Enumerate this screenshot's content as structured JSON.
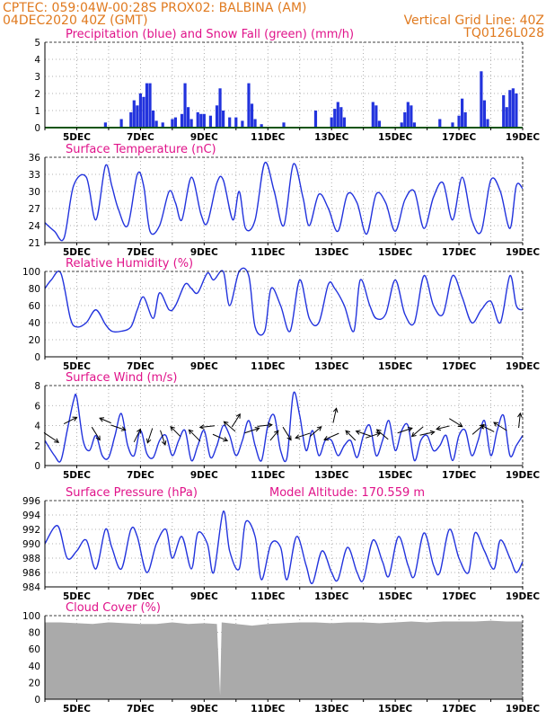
{
  "header": {
    "line1": "CPTEC:   059:04W-00:28S   PROX02: BALBINA (AM)",
    "line2_left": "04DEC2020 40Z (GMT)",
    "line2_right": "Vertical Grid Line: 40Z",
    "line3_right": "TQ0126L028"
  },
  "colors": {
    "header": "#e07a1f",
    "title": "#e0138a",
    "line": "#2233dd",
    "precip": "#2233dd",
    "snow": "#22aa22",
    "cloud": "#aaaaaa"
  },
  "chart_data": [
    {
      "type": "bar",
      "title": "Precipitation (blue) and Snow Fall (green) (mm/h)",
      "ylim": [
        0,
        5
      ],
      "yticks": [
        "0",
        "1",
        "2",
        "3",
        "4",
        "5"
      ],
      "xticks": [
        "5DEC",
        "7DEC",
        "9DEC",
        "11DEC",
        "13DEC",
        "15DEC",
        "17DEC",
        "19DEC"
      ],
      "xrange_days": [
        4,
        19
      ],
      "precip": [
        [
          5.9,
          0.3
        ],
        [
          6.4,
          0.5
        ],
        [
          6.7,
          0.9
        ],
        [
          6.8,
          1.6
        ],
        [
          6.9,
          1.3
        ],
        [
          7.0,
          2.0
        ],
        [
          7.1,
          1.8
        ],
        [
          7.2,
          2.6
        ],
        [
          7.3,
          2.6
        ],
        [
          7.4,
          1.0
        ],
        [
          7.5,
          0.4
        ],
        [
          7.7,
          0.3
        ],
        [
          8.0,
          0.5
        ],
        [
          8.1,
          0.6
        ],
        [
          8.3,
          0.8
        ],
        [
          8.4,
          2.6
        ],
        [
          8.5,
          1.2
        ],
        [
          8.6,
          0.5
        ],
        [
          8.8,
          0.9
        ],
        [
          8.9,
          0.8
        ],
        [
          9.0,
          0.8
        ],
        [
          9.2,
          0.7
        ],
        [
          9.4,
          1.3
        ],
        [
          9.5,
          2.3
        ],
        [
          9.6,
          1.0
        ],
        [
          9.8,
          0.6
        ],
        [
          10.0,
          0.6
        ],
        [
          10.2,
          0.4
        ],
        [
          10.4,
          2.6
        ],
        [
          10.5,
          1.4
        ],
        [
          10.6,
          0.5
        ],
        [
          10.8,
          0.2
        ],
        [
          11.5,
          0.3
        ],
        [
          12.5,
          1.0
        ],
        [
          13.0,
          0.6
        ],
        [
          13.1,
          1.1
        ],
        [
          13.2,
          1.5
        ],
        [
          13.3,
          1.2
        ],
        [
          13.4,
          0.6
        ],
        [
          14.3,
          1.5
        ],
        [
          14.4,
          1.3
        ],
        [
          14.5,
          0.4
        ],
        [
          15.2,
          0.3
        ],
        [
          15.3,
          0.9
        ],
        [
          15.4,
          1.5
        ],
        [
          15.5,
          1.3
        ],
        [
          15.6,
          0.3
        ],
        [
          16.4,
          0.5
        ],
        [
          16.8,
          0.3
        ],
        [
          17.0,
          0.7
        ],
        [
          17.1,
          1.7
        ],
        [
          17.2,
          0.9
        ],
        [
          17.7,
          3.3
        ],
        [
          17.8,
          1.6
        ],
        [
          17.9,
          0.5
        ],
        [
          18.4,
          1.9
        ],
        [
          18.5,
          1.2
        ],
        [
          18.6,
          2.2
        ],
        [
          18.7,
          2.3
        ],
        [
          18.8,
          2.0
        ]
      ],
      "snow": [
        [
          4,
          0
        ],
        [
          19,
          0
        ]
      ]
    },
    {
      "type": "line",
      "title": "Surface Temperature (nC)",
      "ylim": [
        21,
        36
      ],
      "yticks": [
        "21",
        "24",
        "27",
        "30",
        "33",
        "36"
      ],
      "xticks": [
        "5DEC",
        "7DEC",
        "9DEC",
        "11DEC",
        "13DEC",
        "15DEC",
        "17DEC",
        "19DEC"
      ],
      "xrange_days": [
        4,
        19
      ],
      "x": [
        4.0,
        4.3,
        4.6,
        4.9,
        5.3,
        5.6,
        5.9,
        6.1,
        6.3,
        6.6,
        6.9,
        7.1,
        7.3,
        7.6,
        7.9,
        8.1,
        8.3,
        8.6,
        8.9,
        9.1,
        9.4,
        9.6,
        9.9,
        10.1,
        10.3,
        10.6,
        10.9,
        11.2,
        11.5,
        11.8,
        12.1,
        12.3,
        12.6,
        12.9,
        13.2,
        13.5,
        13.8,
        14.1,
        14.4,
        14.7,
        15.0,
        15.3,
        15.6,
        15.9,
        16.2,
        16.5,
        16.8,
        17.1,
        17.4,
        17.7,
        18.0,
        18.3,
        18.6,
        18.8,
        19.0
      ],
      "values": [
        24.5,
        23.0,
        21.8,
        31.0,
        32.5,
        25.0,
        34.5,
        31.0,
        27.0,
        24.0,
        33.0,
        31.0,
        23.0,
        24.0,
        30.0,
        28.0,
        25.0,
        32.5,
        26.0,
        24.5,
        31.5,
        32.0,
        25.0,
        30.0,
        23.5,
        25.0,
        35.0,
        30.0,
        24.0,
        34.8,
        29.0,
        24.0,
        29.5,
        27.0,
        23.0,
        29.5,
        28.0,
        22.5,
        29.5,
        28.0,
        23.0,
        28.5,
        30.0,
        23.5,
        29.0,
        31.5,
        25.0,
        32.5,
        25.0,
        23.0,
        32.0,
        30.0,
        23.5,
        31.0,
        30.5
      ]
    },
    {
      "type": "line",
      "title": "Relative Humidity (%)",
      "ylim": [
        0,
        100
      ],
      "yticks": [
        "0",
        "20",
        "40",
        "60",
        "80",
        "100"
      ],
      "xticks": [
        "5DEC",
        "7DEC",
        "9DEC",
        "11DEC",
        "13DEC",
        "15DEC",
        "17DEC",
        "19DEC"
      ],
      "xrange_days": [
        4,
        19
      ],
      "x": [
        4.0,
        4.2,
        4.5,
        4.8,
        5.0,
        5.3,
        5.6,
        5.9,
        6.1,
        6.4,
        6.7,
        6.9,
        7.1,
        7.4,
        7.6,
        7.9,
        8.1,
        8.4,
        8.6,
        8.8,
        9.1,
        9.3,
        9.6,
        9.8,
        10.1,
        10.4,
        10.6,
        10.9,
        11.1,
        11.4,
        11.7,
        12.0,
        12.3,
        12.6,
        12.9,
        13.1,
        13.4,
        13.7,
        13.9,
        14.2,
        14.4,
        14.7,
        15.0,
        15.3,
        15.6,
        15.9,
        16.2,
        16.5,
        16.8,
        17.1,
        17.4,
        17.7,
        18.0,
        18.3,
        18.6,
        18.8,
        19.0
      ],
      "values": [
        80,
        90,
        98,
        45,
        35,
        40,
        55,
        38,
        30,
        30,
        35,
        55,
        70,
        45,
        75,
        55,
        60,
        85,
        80,
        75,
        98,
        90,
        100,
        60,
        100,
        95,
        35,
        30,
        80,
        60,
        30,
        90,
        45,
        40,
        85,
        80,
        60,
        30,
        90,
        60,
        45,
        50,
        90,
        50,
        40,
        95,
        60,
        50,
        95,
        70,
        40,
        55,
        65,
        40,
        95,
        60,
        55
      ]
    },
    {
      "type": "line",
      "title": "Surface Wind (m/s)",
      "ylim": [
        0,
        8
      ],
      "yticks": [
        "0",
        "2",
        "4",
        "6",
        "8"
      ],
      "xticks": [
        "5DEC",
        "7DEC",
        "9DEC",
        "11DEC",
        "13DEC",
        "15DEC",
        "17DEC",
        "19DEC"
      ],
      "xrange_days": [
        4,
        19
      ],
      "x": [
        4.0,
        4.3,
        4.5,
        4.7,
        4.9,
        5.0,
        5.2,
        5.4,
        5.6,
        5.8,
        6.0,
        6.2,
        6.4,
        6.6,
        6.8,
        7.0,
        7.2,
        7.4,
        7.6,
        7.8,
        8.0,
        8.2,
        8.4,
        8.6,
        8.8,
        9.0,
        9.2,
        9.4,
        9.6,
        9.8,
        10.0,
        10.2,
        10.4,
        10.6,
        10.8,
        11.0,
        11.2,
        11.4,
        11.6,
        11.8,
        12.0,
        12.2,
        12.4,
        12.6,
        12.8,
        13.0,
        13.2,
        13.4,
        13.6,
        13.8,
        14.0,
        14.2,
        14.4,
        14.6,
        14.8,
        15.0,
        15.2,
        15.4,
        15.6,
        15.8,
        16.0,
        16.2,
        16.4,
        16.6,
        16.8,
        17.0,
        17.2,
        17.4,
        17.6,
        17.8,
        18.0,
        18.2,
        18.4,
        18.6,
        18.8,
        19.0
      ],
      "values": [
        2.5,
        1.0,
        0.5,
        3.5,
        6.5,
        6.8,
        2.5,
        1.5,
        3.0,
        1.0,
        0.8,
        3.0,
        5.2,
        2.0,
        1.0,
        3.5,
        1.2,
        0.8,
        2.5,
        3.0,
        1.0,
        2.5,
        3.5,
        0.5,
        2.0,
        3.5,
        0.8,
        2.0,
        4.0,
        3.0,
        1.0,
        2.5,
        4.5,
        2.0,
        0.5,
        4.0,
        5.0,
        1.5,
        0.8,
        7.2,
        5.0,
        1.5,
        3.5,
        1.0,
        2.5,
        2.5,
        1.0,
        2.0,
        2.5,
        0.8,
        3.0,
        4.0,
        1.0,
        2.5,
        4.5,
        1.5,
        3.5,
        4.0,
        0.5,
        2.5,
        3.0,
        1.5,
        2.0,
        3.0,
        0.5,
        3.0,
        3.5,
        1.0,
        2.5,
        4.5,
        1.0,
        3.5,
        5.0,
        1.0,
        2.0,
        3.0
      ]
    },
    {
      "type": "line",
      "title": "Surface Pressure (hPa)",
      "annotation": "Model Altitude: 170.559 m",
      "ylim": [
        984,
        996
      ],
      "yticks": [
        "984",
        "986",
        "988",
        "990",
        "992",
        "994",
        "996"
      ],
      "xticks": [
        "5DEC",
        "7DEC",
        "9DEC",
        "11DEC",
        "13DEC",
        "15DEC",
        "17DEC",
        "19DEC"
      ],
      "xrange_days": [
        4,
        19
      ],
      "x": [
        4.0,
        4.4,
        4.7,
        5.0,
        5.3,
        5.6,
        5.9,
        6.1,
        6.4,
        6.7,
        6.9,
        7.2,
        7.5,
        7.8,
        8.0,
        8.3,
        8.6,
        8.8,
        9.1,
        9.3,
        9.6,
        9.8,
        10.1,
        10.3,
        10.6,
        10.8,
        11.1,
        11.4,
        11.6,
        11.9,
        12.2,
        12.4,
        12.7,
        13.0,
        13.2,
        13.5,
        13.8,
        14.0,
        14.3,
        14.6,
        14.8,
        15.1,
        15.4,
        15.6,
        15.9,
        16.2,
        16.4,
        16.7,
        17.0,
        17.3,
        17.5,
        17.8,
        18.1,
        18.3,
        18.6,
        18.8,
        19.0
      ],
      "values": [
        990.0,
        992.5,
        988.0,
        989.0,
        990.5,
        986.5,
        992.0,
        989.5,
        986.5,
        992.0,
        991.0,
        986.0,
        990.0,
        992.0,
        988.0,
        991.0,
        986.5,
        991.5,
        990.0,
        986.0,
        994.5,
        989.0,
        986.5,
        993.0,
        991.0,
        985.0,
        990.0,
        989.5,
        985.0,
        991.0,
        987.0,
        984.5,
        989.0,
        986.0,
        985.0,
        989.5,
        986.0,
        985.0,
        990.5,
        987.5,
        985.5,
        991.0,
        987.0,
        985.5,
        991.5,
        987.0,
        986.0,
        992.0,
        988.0,
        986.0,
        991.5,
        989.0,
        986.5,
        990.5,
        988.0,
        986.0,
        987.5
      ]
    },
    {
      "type": "area",
      "title": "Cloud Cover (%)",
      "ylim": [
        0,
        100
      ],
      "yticks": [
        "0",
        "20",
        "40",
        "60",
        "80",
        "100"
      ],
      "xticks": [
        "5DEC",
        "7DEC",
        "9DEC",
        "11DEC",
        "13DEC",
        "15DEC",
        "17DEC",
        "19DEC"
      ],
      "xrange_days": [
        4,
        19
      ],
      "x": [
        4.0,
        4.5,
        5.0,
        5.5,
        6.0,
        6.5,
        7.0,
        7.5,
        8.0,
        8.5,
        9.0,
        9.4,
        9.5,
        9.55,
        10.0,
        10.5,
        11.0,
        11.5,
        12.0,
        12.5,
        13.0,
        13.5,
        14.0,
        14.5,
        15.0,
        15.5,
        16.0,
        16.5,
        17.0,
        17.5,
        18.0,
        18.5,
        19.0
      ],
      "values": [
        92,
        92,
        91,
        90,
        92,
        91,
        90,
        90,
        92,
        90,
        91,
        90,
        5,
        92,
        90,
        88,
        90,
        91,
        92,
        92,
        91,
        92,
        92,
        91,
        92,
        93,
        92,
        93,
        93,
        93,
        94,
        93,
        93
      ]
    }
  ]
}
